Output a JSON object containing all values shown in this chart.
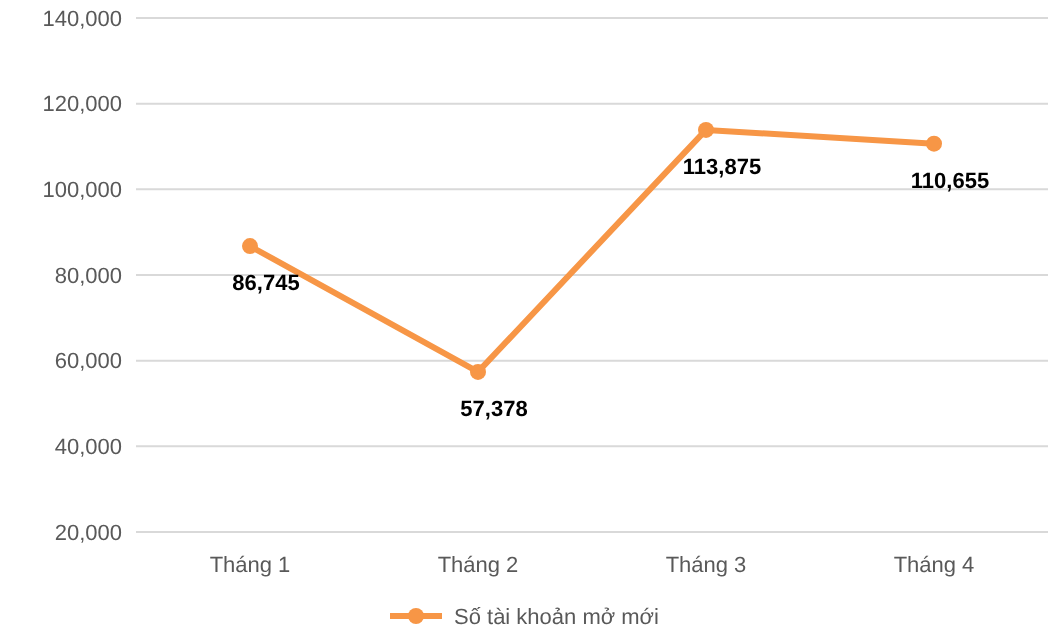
{
  "chart_data": {
    "type": "line",
    "categories": [
      "Tháng 1",
      "Tháng 2",
      "Tháng 3",
      "Tháng 4"
    ],
    "series": [
      {
        "name": "Số tài khoản mở mới",
        "color": "#f79646",
        "values": [
          86745,
          57378,
          113875,
          110655
        ],
        "value_labels": [
          "86,745",
          "57,378",
          "113,875",
          "110,655"
        ]
      }
    ],
    "ylim": [
      20000,
      140000
    ],
    "yticks": [
      {
        "value": 20000,
        "label": "20,000"
      },
      {
        "value": 40000,
        "label": "40,000"
      },
      {
        "value": 60000,
        "label": "60,000"
      },
      {
        "value": 80000,
        "label": "80,000"
      },
      {
        "value": 100000,
        "label": "100,000"
      },
      {
        "value": 120000,
        "label": "120,000"
      },
      {
        "value": 140000,
        "label": "140,000"
      }
    ],
    "grid": "y",
    "legend": "bottom",
    "marker": "circle",
    "line_style": "solid"
  }
}
